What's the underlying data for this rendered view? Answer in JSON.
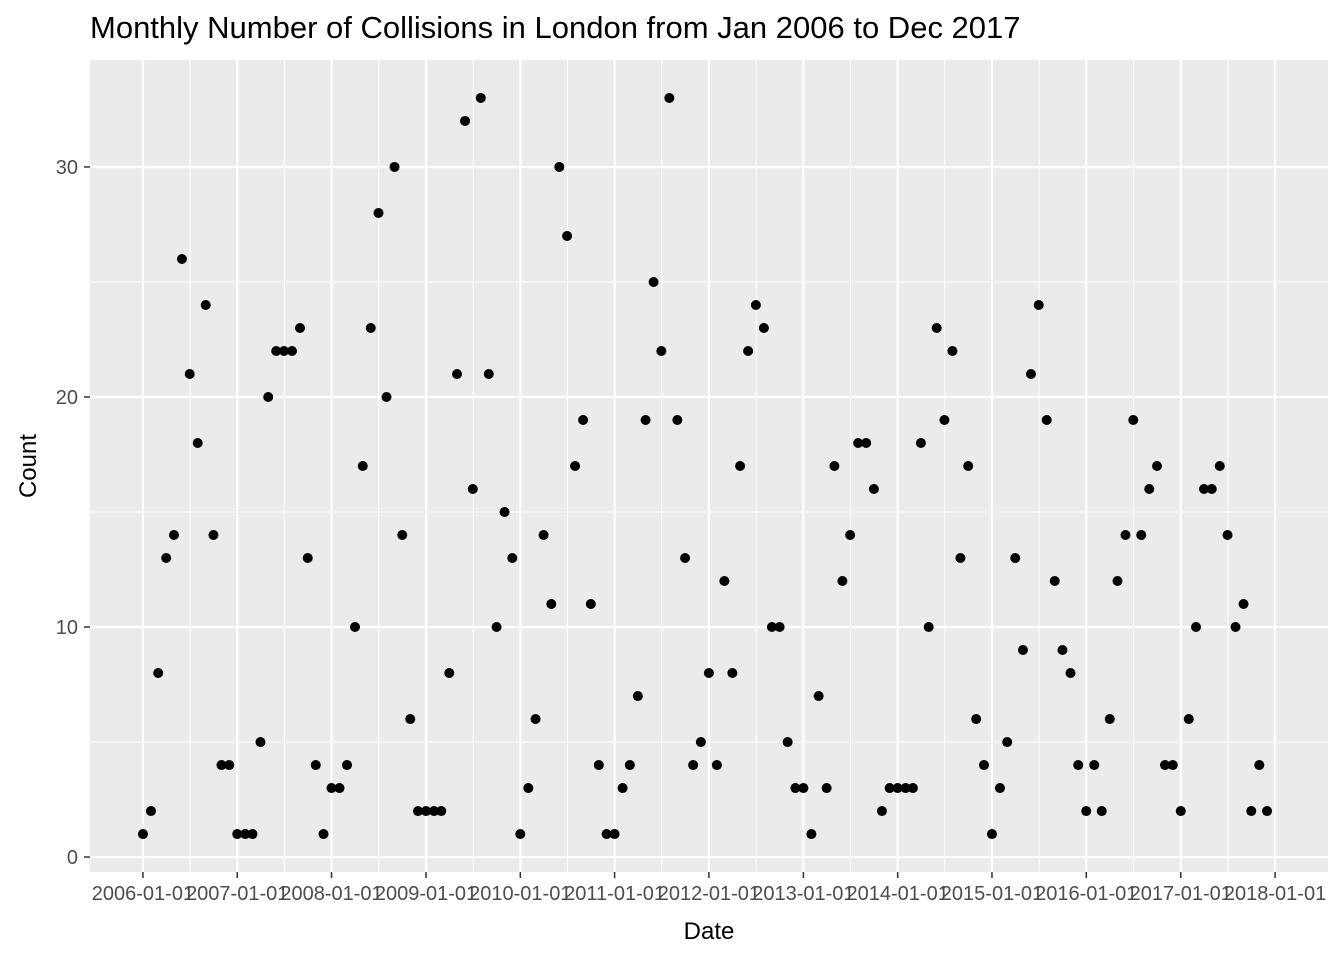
{
  "chart_data": {
    "type": "scatter",
    "title": "Monthly Number of Collisions in London from Jan 2006 to Dec 2017",
    "xlabel": "Date",
    "ylabel": "Count",
    "x_ticks": [
      "2006-01-01",
      "2007-01-01",
      "2008-01-01",
      "2009-01-01",
      "2010-01-01",
      "2011-01-01",
      "2012-01-01",
      "2013-01-01",
      "2014-01-01",
      "2015-01-01",
      "2016-01-01",
      "2017-01-01",
      "2018-01-01"
    ],
    "y_ticks": [
      0,
      10,
      20,
      30
    ],
    "ylim": [
      -0.65,
      34.65
    ],
    "xlim": [
      "2005-06-10",
      "2018-07-25"
    ],
    "grid": true,
    "background": "#ebebeb",
    "grid_color": "#ffffff",
    "point_color": "#000000",
    "x": [
      "2006-01",
      "2006-02",
      "2006-03",
      "2006-04",
      "2006-05",
      "2006-06",
      "2006-07",
      "2006-08",
      "2006-09",
      "2006-10",
      "2006-11",
      "2006-12",
      "2007-01",
      "2007-02",
      "2007-03",
      "2007-04",
      "2007-05",
      "2007-06",
      "2007-07",
      "2007-08",
      "2007-09",
      "2007-10",
      "2007-11",
      "2007-12",
      "2008-01",
      "2008-02",
      "2008-03",
      "2008-04",
      "2008-05",
      "2008-06",
      "2008-07",
      "2008-08",
      "2008-09",
      "2008-10",
      "2008-11",
      "2008-12",
      "2009-01",
      "2009-02",
      "2009-03",
      "2009-04",
      "2009-05",
      "2009-06",
      "2009-07",
      "2009-08",
      "2009-09",
      "2009-10",
      "2009-11",
      "2009-12",
      "2010-01",
      "2010-02",
      "2010-03",
      "2010-04",
      "2010-05",
      "2010-06",
      "2010-07",
      "2010-08",
      "2010-09",
      "2010-10",
      "2010-11",
      "2010-12",
      "2011-01",
      "2011-02",
      "2011-03",
      "2011-04",
      "2011-05",
      "2011-06",
      "2011-07",
      "2011-08",
      "2011-09",
      "2011-10",
      "2011-11",
      "2011-12",
      "2012-01",
      "2012-02",
      "2012-03",
      "2012-04",
      "2012-05",
      "2012-06",
      "2012-07",
      "2012-08",
      "2012-09",
      "2012-10",
      "2012-11",
      "2012-12",
      "2013-01",
      "2013-02",
      "2013-03",
      "2013-04",
      "2013-05",
      "2013-06",
      "2013-07",
      "2013-08",
      "2013-09",
      "2013-10",
      "2013-11",
      "2013-12",
      "2014-01",
      "2014-02",
      "2014-03",
      "2014-04",
      "2014-05",
      "2014-06",
      "2014-07",
      "2014-08",
      "2014-09",
      "2014-10",
      "2014-11",
      "2014-12",
      "2015-01",
      "2015-02",
      "2015-03",
      "2015-04",
      "2015-05",
      "2015-06",
      "2015-07",
      "2015-08",
      "2015-09",
      "2015-10",
      "2015-11",
      "2015-12",
      "2016-01",
      "2016-02",
      "2016-03",
      "2016-04",
      "2016-05",
      "2016-06",
      "2016-07",
      "2016-08",
      "2016-09",
      "2016-10",
      "2016-11",
      "2016-12",
      "2017-01",
      "2017-02",
      "2017-03",
      "2017-04",
      "2017-05",
      "2017-06",
      "2017-07",
      "2017-08",
      "2017-09",
      "2017-10",
      "2017-11",
      "2017-12"
    ],
    "y": [
      1,
      2,
      8,
      13,
      14,
      26,
      21,
      18,
      24,
      14,
      4,
      4,
      1,
      1,
      1,
      5,
      20,
      22,
      22,
      22,
      23,
      13,
      4,
      1,
      3,
      3,
      4,
      10,
      17,
      23,
      28,
      20,
      30,
      14,
      6,
      2,
      2,
      2,
      2,
      8,
      21,
      32,
      16,
      33,
      21,
      10,
      15,
      13,
      1,
      3,
      6,
      14,
      11,
      30,
      27,
      17,
      19,
      11,
      4,
      1,
      1,
      3,
      4,
      7,
      19,
      25,
      22,
      33,
      19,
      13,
      4,
      5,
      8,
      4,
      12,
      8,
      17,
      22,
      24,
      23,
      10,
      10,
      5,
      3,
      3,
      1,
      7,
      3,
      17,
      12,
      14,
      18,
      18,
      16,
      2,
      3,
      3,
      3,
      3,
      18,
      10,
      23,
      19,
      22,
      13,
      17,
      6,
      4,
      1,
      3,
      5,
      13,
      9,
      21,
      24,
      19,
      12,
      9,
      8,
      4,
      2,
      4,
      2,
      6,
      12,
      14,
      19,
      14,
      16,
      17,
      4,
      4,
      2,
      6,
      10,
      16,
      16,
      17,
      14,
      10,
      11,
      2,
      4,
      2
    ]
  }
}
